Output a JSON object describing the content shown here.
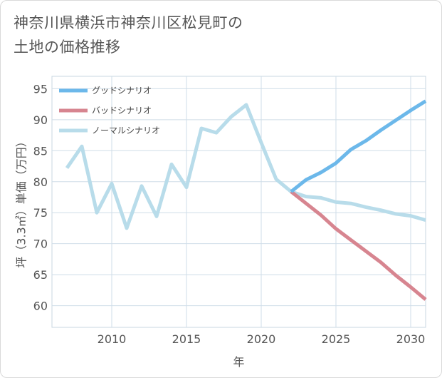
{
  "page": {
    "title_line1": "神奈川県横浜市神奈川区松見町の",
    "title_line2": "土地の価格推移"
  },
  "chart_data": {
    "type": "line",
    "title": "神奈川県横浜市神奈川区松見町の土地の価格推移",
    "xlabel": "年",
    "ylabel": "坪（3.3㎡）単価（万円）",
    "xlim": [
      2006,
      2031
    ],
    "ylim": [
      56.5,
      97
    ],
    "x_ticks": [
      2010,
      2015,
      2020,
      2025,
      2030
    ],
    "x_tick_labels": [
      "2010",
      "2015",
      "2020",
      "2025",
      "2030"
    ],
    "y_ticks": [
      60,
      65,
      70,
      75,
      80,
      85,
      90,
      95
    ],
    "y_tick_labels": [
      "60",
      "65",
      "70",
      "75",
      "80",
      "85",
      "90",
      "95"
    ],
    "grid": true,
    "legend_position": "top-left",
    "series": [
      {
        "name": "グッドシナリオ",
        "color": "#6cb8ea",
        "x": [
          2022,
          2023,
          2024,
          2025,
          2026,
          2027,
          2028,
          2029,
          2030,
          2031
        ],
        "values": [
          78.4,
          80.3,
          81.5,
          83.0,
          85.2,
          86.6,
          88.3,
          89.9,
          91.5,
          93.0
        ]
      },
      {
        "name": "バッドシナリオ",
        "color": "#d78590",
        "x": [
          2022,
          2023,
          2024,
          2025,
          2026,
          2027,
          2028,
          2029,
          2030,
          2031
        ],
        "values": [
          78.4,
          76.5,
          74.6,
          72.4,
          70.6,
          68.8,
          67.0,
          64.9,
          63.0,
          61.0
        ]
      },
      {
        "name": "ノーマルシナリオ",
        "color": "#b8dcea",
        "x": [
          2007,
          2008,
          2009,
          2010,
          2011,
          2012,
          2013,
          2014,
          2015,
          2016,
          2017,
          2018,
          2019,
          2020,
          2021,
          2022,
          2023,
          2024,
          2025,
          2026,
          2027,
          2028,
          2029,
          2030,
          2031
        ],
        "values": [
          82.2,
          85.7,
          75.0,
          79.7,
          72.5,
          79.3,
          74.4,
          82.8,
          79.1,
          88.6,
          87.9,
          90.5,
          92.4,
          86.3,
          80.4,
          78.4,
          77.6,
          77.4,
          76.7,
          76.5,
          75.9,
          75.4,
          74.8,
          74.5,
          73.8
        ]
      }
    ]
  }
}
